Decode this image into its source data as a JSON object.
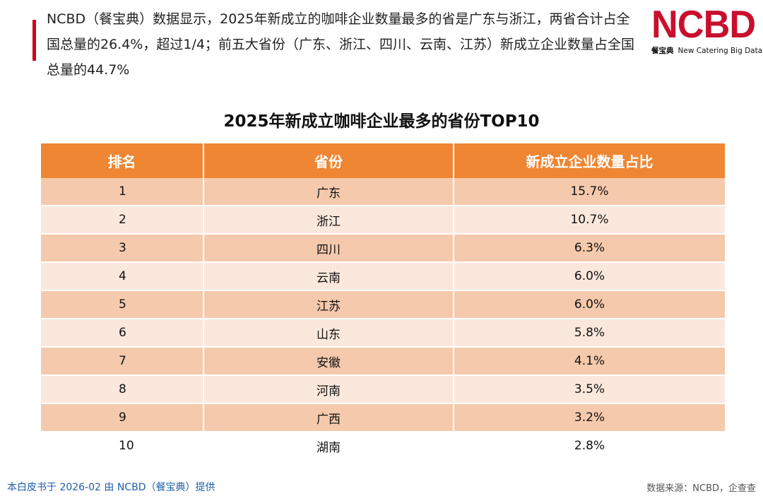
{
  "header": {
    "intro_text": "NCBD（餐宝典）数据显示，2025年新成立的咖啡企业数量最多的省是广东与浙江，两省合计占全国总量的26.4%，超过1/4；前五大省份（广东、浙江、四川、云南、江苏）新成立企业数量占全国总量的44.7%",
    "accent_color": "#d0021b"
  },
  "logo": {
    "mark": "NCBD",
    "sub_cn": "餐宝典",
    "sub_en": "New Catering Big Data",
    "color": "#c8102e"
  },
  "table": {
    "title": "2025年新成立咖啡企业最多的省份TOP10",
    "headers": [
      "排名",
      "省份",
      "新成立企业数量占比"
    ],
    "header_color": "#ee8633",
    "rows": [
      {
        "rank": "1",
        "province": "广东",
        "share": "15.7%"
      },
      {
        "rank": "2",
        "province": "浙江",
        "share": "10.7%"
      },
      {
        "rank": "3",
        "province": "四川",
        "share": "6.3%"
      },
      {
        "rank": "4",
        "province": "云南",
        "share": "6.0%"
      },
      {
        "rank": "5",
        "province": "江苏",
        "share": "6.0%"
      },
      {
        "rank": "6",
        "province": "山东",
        "share": "5.8%"
      },
      {
        "rank": "7",
        "province": "安徽",
        "share": "4.1%"
      },
      {
        "rank": "8",
        "province": "河南",
        "share": "3.5%"
      },
      {
        "rank": "9",
        "province": "广西",
        "share": "3.2%"
      },
      {
        "rank": "10",
        "province": "湖南",
        "share": "2.8%"
      }
    ]
  },
  "footer": {
    "left": "本白皮书于 2026-02 由 NCBD（餐宝典）提供",
    "right": "数据来源：NCBD，企查查"
  }
}
